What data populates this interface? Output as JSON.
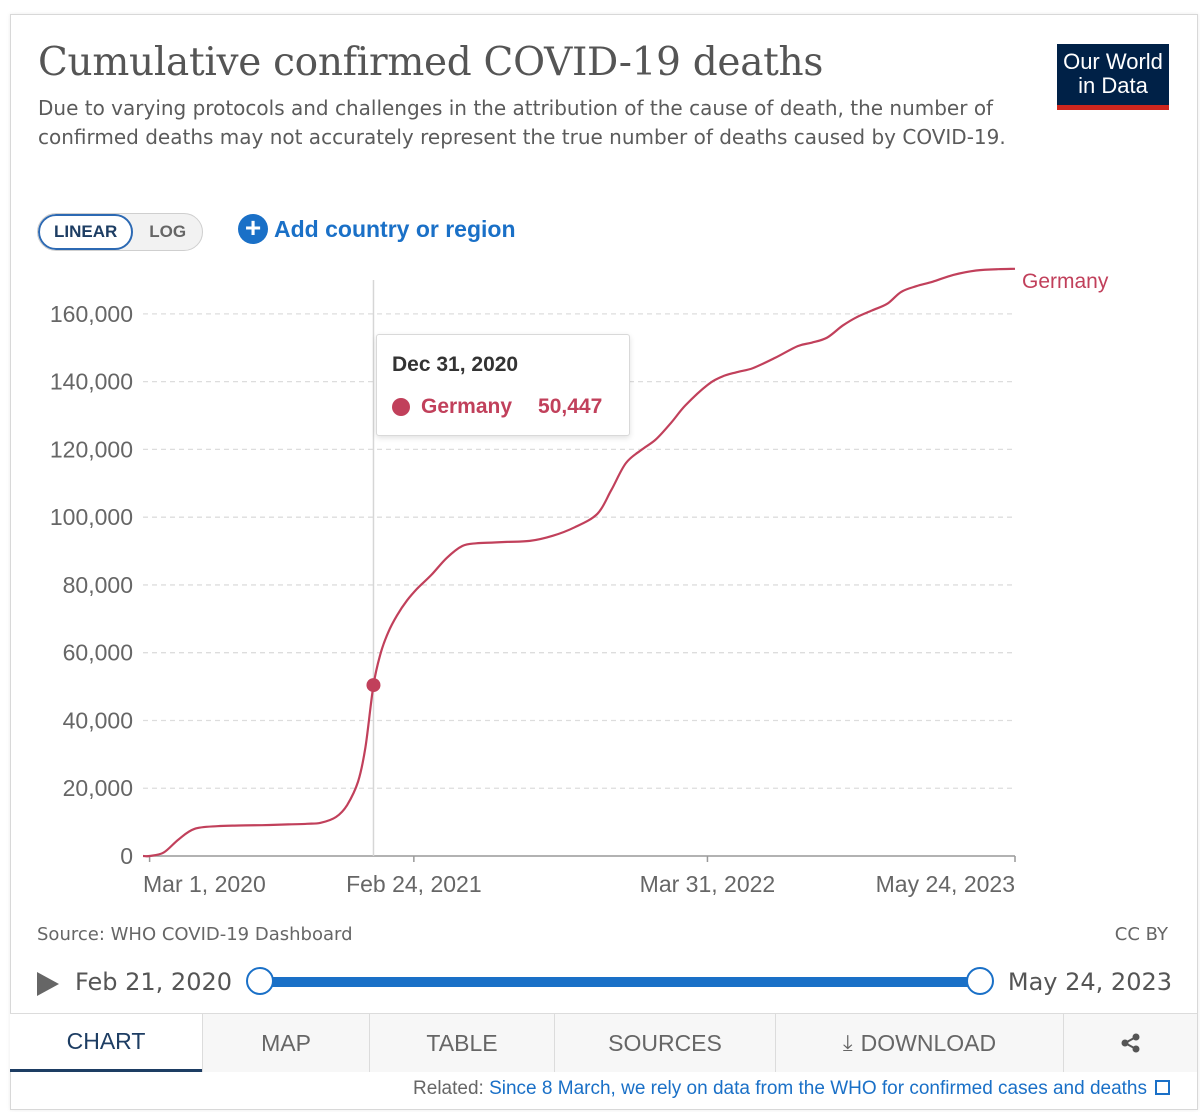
{
  "header": {
    "title": "Cumulative confirmed COVID-19 deaths",
    "subtitle": "Due to varying protocols and challenges in the attribution of the cause of death, the number of confirmed deaths may not accurately represent the true number of deaths caused by COVID-19.",
    "logo_line1": "Our World",
    "logo_line2": "in Data"
  },
  "controls": {
    "linear_label": "LINEAR",
    "log_label": "LOG",
    "add_country_label": "Add country or region"
  },
  "tooltip": {
    "date": "Dec 31, 2020",
    "series": "Germany",
    "value": "50,447"
  },
  "chart_data": {
    "type": "line",
    "title": "Cumulative confirmed COVID-19 deaths",
    "xlabel": "",
    "ylabel": "",
    "ylim": [
      0,
      170000
    ],
    "y_ticks": [
      0,
      20000,
      40000,
      60000,
      80000,
      100000,
      120000,
      140000,
      160000
    ],
    "y_tick_labels": [
      "0",
      "20,000",
      "40,000",
      "60,000",
      "80,000",
      "100,000",
      "120,000",
      "140,000",
      "160,000"
    ],
    "x_tick_labels": [
      "Mar 1, 2020",
      "Feb 24, 2021",
      "Mar 31, 2022",
      "May 24, 2023"
    ],
    "x_ticks": [
      "2020-03-01",
      "2021-02-24",
      "2022-03-31",
      "2023-05-24"
    ],
    "x_range": [
      "2020-02-21",
      "2023-05-24"
    ],
    "grid": "horizontal dashed",
    "legend": "inline label at line end",
    "series": [
      {
        "name": "Germany",
        "color": "#c1405b",
        "x": [
          "2020-02-21",
          "2020-03-01",
          "2020-03-20",
          "2020-04-10",
          "2020-05-01",
          "2020-06-01",
          "2020-07-01",
          "2020-08-01",
          "2020-09-01",
          "2020-10-01",
          "2020-10-20",
          "2020-11-10",
          "2020-11-25",
          "2020-12-10",
          "2020-12-20",
          "2020-12-31",
          "2021-01-10",
          "2021-01-20",
          "2021-02-01",
          "2021-02-15",
          "2021-03-01",
          "2021-03-20",
          "2021-04-10",
          "2021-05-01",
          "2021-05-20",
          "2021-06-10",
          "2021-07-01",
          "2021-08-01",
          "2021-09-01",
          "2021-10-01",
          "2021-11-01",
          "2021-11-20",
          "2021-12-10",
          "2022-01-01",
          "2022-01-20",
          "2022-02-10",
          "2022-03-01",
          "2022-03-31",
          "2022-04-20",
          "2022-05-10",
          "2022-06-01",
          "2022-07-01",
          "2022-08-01",
          "2022-08-20",
          "2022-09-10",
          "2022-10-01",
          "2022-10-20",
          "2022-11-10",
          "2022-12-01",
          "2022-12-20",
          "2023-01-10",
          "2023-02-01",
          "2023-03-01",
          "2023-04-01",
          "2023-05-01",
          "2023-05-24"
        ],
        "values": [
          0,
          0,
          1000,
          5000,
          8000,
          8800,
          9000,
          9100,
          9300,
          9500,
          9800,
          11500,
          15000,
          22000,
          32000,
          50447,
          60000,
          66000,
          71000,
          75500,
          79000,
          83000,
          88000,
          91500,
          92300,
          92500,
          92700,
          93000,
          94500,
          97000,
          101000,
          108000,
          116000,
          120000,
          123000,
          128000,
          133000,
          139000,
          141500,
          142800,
          144000,
          147000,
          150500,
          151500,
          153000,
          156500,
          159000,
          161000,
          163000,
          166500,
          168200,
          169500,
          171500,
          172800,
          173200,
          173300
        ]
      }
    ]
  },
  "footer": {
    "source": "Source: WHO COVID-19 Dashboard",
    "license": "CC BY",
    "timeline_start": "Feb 21, 2020",
    "timeline_end": "May 24, 2023",
    "tabs": [
      "CHART",
      "MAP",
      "TABLE",
      "SOURCES",
      "DOWNLOAD"
    ],
    "related_prefix": "Related: ",
    "related_link": "Since 8 March, we rely on data from the WHO for confirmed cases and deaths"
  }
}
